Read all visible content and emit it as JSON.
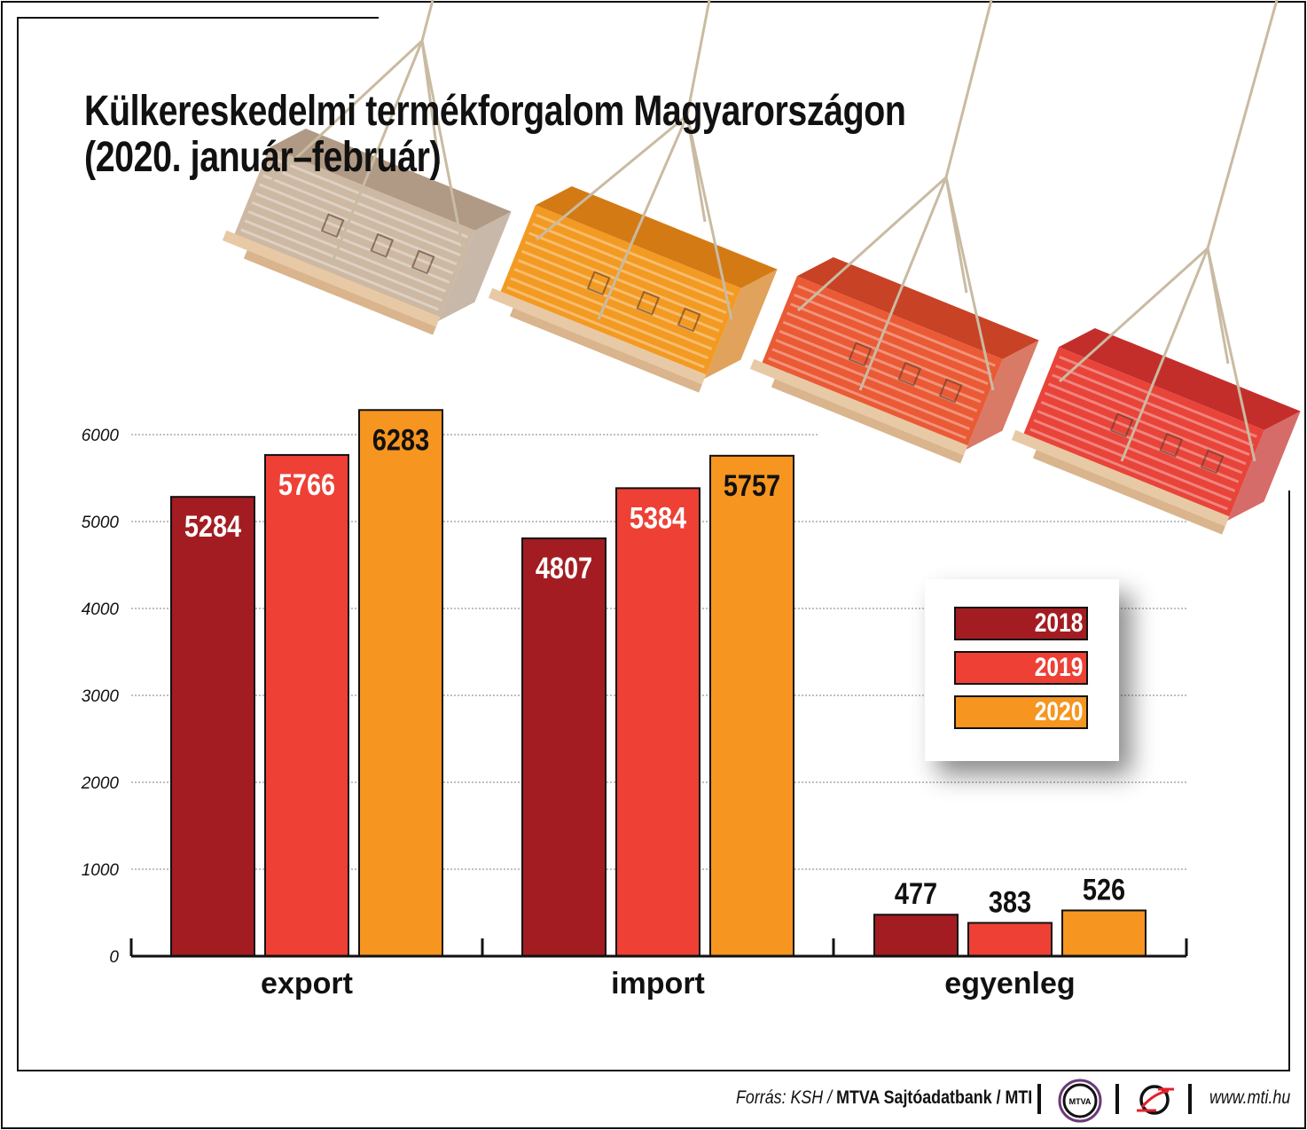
{
  "title_line1": "Külkereskedelmi termékforgalom Magyarországon",
  "title_line2": "(2020. január–február)",
  "chart_data": {
    "type": "bar",
    "title": "Külkereskedelmi termékforgalom Magyarországon (2020. január–február)",
    "categories": [
      "export",
      "import",
      "egyenleg"
    ],
    "series": [
      {
        "name": "2018",
        "color": "#a31c21",
        "values": [
          5284,
          4807,
          477
        ]
      },
      {
        "name": "2019",
        "color": "#ee4035",
        "values": [
          5766,
          5384,
          383
        ]
      },
      {
        "name": "2020",
        "color": "#f6951f",
        "values": [
          6283,
          5757,
          526
        ]
      }
    ],
    "yticks": [
      "0",
      "1000",
      "2000",
      "3000",
      "4000",
      "5000",
      "6000"
    ],
    "ylim": [
      0,
      6000
    ],
    "grid": true,
    "legend_placement": "right"
  },
  "footer": {
    "source_prefix": "Forrás: KSH / ",
    "source_bold": "MTVA Sajtóadatbank",
    "source_suffix": " / MTI",
    "mtva_logo": "MTVA",
    "url": "www.mti.hu"
  }
}
